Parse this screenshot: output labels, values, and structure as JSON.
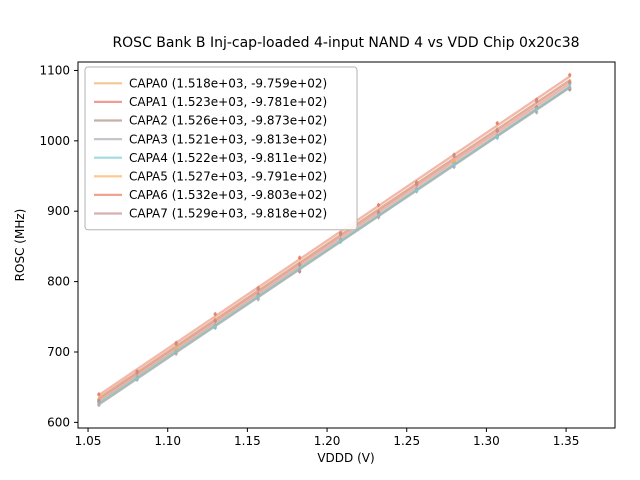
{
  "chart_data": {
    "type": "line",
    "title": "ROSC Bank B Inj-cap-loaded 4-input NAND 4 vs VDD Chip 0x20c38",
    "xlabel": "VDDD (V)",
    "ylabel": "ROSC (MHz)",
    "xlim": [
      1.0437,
      1.3807
    ],
    "ylim": [
      592,
      1112
    ],
    "xticks": [
      {
        "v": 1.05,
        "label": "1.05"
      },
      {
        "v": 1.1,
        "label": "1.10"
      },
      {
        "v": 1.15,
        "label": "1.15"
      },
      {
        "v": 1.2,
        "label": "1.20"
      },
      {
        "v": 1.25,
        "label": "1.25"
      },
      {
        "v": 1.3,
        "label": "1.30"
      },
      {
        "v": 1.35,
        "label": "1.35"
      }
    ],
    "yticks": [
      {
        "v": 600,
        "label": "600"
      },
      {
        "v": 700,
        "label": "700"
      },
      {
        "v": 800,
        "label": "800"
      },
      {
        "v": 900,
        "label": "900"
      },
      {
        "v": 1000,
        "label": "1000"
      },
      {
        "v": 1100,
        "label": "1100"
      }
    ],
    "x_points": [
      1.0568,
      1.0808,
      1.1053,
      1.1298,
      1.1568,
      1.1828,
      1.2085,
      1.2323,
      1.2562,
      1.2797,
      1.3068,
      1.3315,
      1.3523
    ],
    "fit_extent": [
      1.0568,
      1.3523
    ],
    "legend_position": "upper left",
    "grid": false,
    "series": [
      {
        "name": "CAPA0",
        "label": "CAPA0 (1.518e+03, -9.759e+02)",
        "slope": 1518,
        "intercept": -975.9,
        "color": "#EFAF6B"
      },
      {
        "name": "CAPA1",
        "label": "CAPA1 (1.523e+03, -9.781e+02)",
        "slope": 1523,
        "intercept": -978.1,
        "color": "#E4756B"
      },
      {
        "name": "CAPA2",
        "label": "CAPA2 (1.526e+03, -9.873e+02)",
        "slope": 1526,
        "intercept": -987.3,
        "color": "#AE8E84"
      },
      {
        "name": "CAPA3",
        "label": "CAPA3 (1.521e+03, -9.813e+02)",
        "slope": 1521,
        "intercept": -981.3,
        "color": "#A9AEB3"
      },
      {
        "name": "CAPA4",
        "label": "CAPA4 (1.522e+03, -9.811e+02)",
        "slope": 1522,
        "intercept": -981.1,
        "color": "#7BCBD1"
      },
      {
        "name": "CAPA5",
        "label": "CAPA5 (1.527e+03, -9.791e+02)",
        "slope": 1527,
        "intercept": -979.1,
        "color": "#FFAE5C"
      },
      {
        "name": "CAPA6",
        "label": "CAPA6 (1.532e+03, -9.803e+02)",
        "slope": 1532,
        "intercept": -980.3,
        "color": "#E77E62"
      },
      {
        "name": "CAPA7",
        "label": "CAPA7 (1.529e+03, -9.818e+02)",
        "slope": 1529,
        "intercept": -981.8,
        "color": "#C48E8E"
      }
    ],
    "colors": {
      "spine": "#000000",
      "legend_border": "#b3b3b3",
      "background": "#ffffff"
    }
  }
}
